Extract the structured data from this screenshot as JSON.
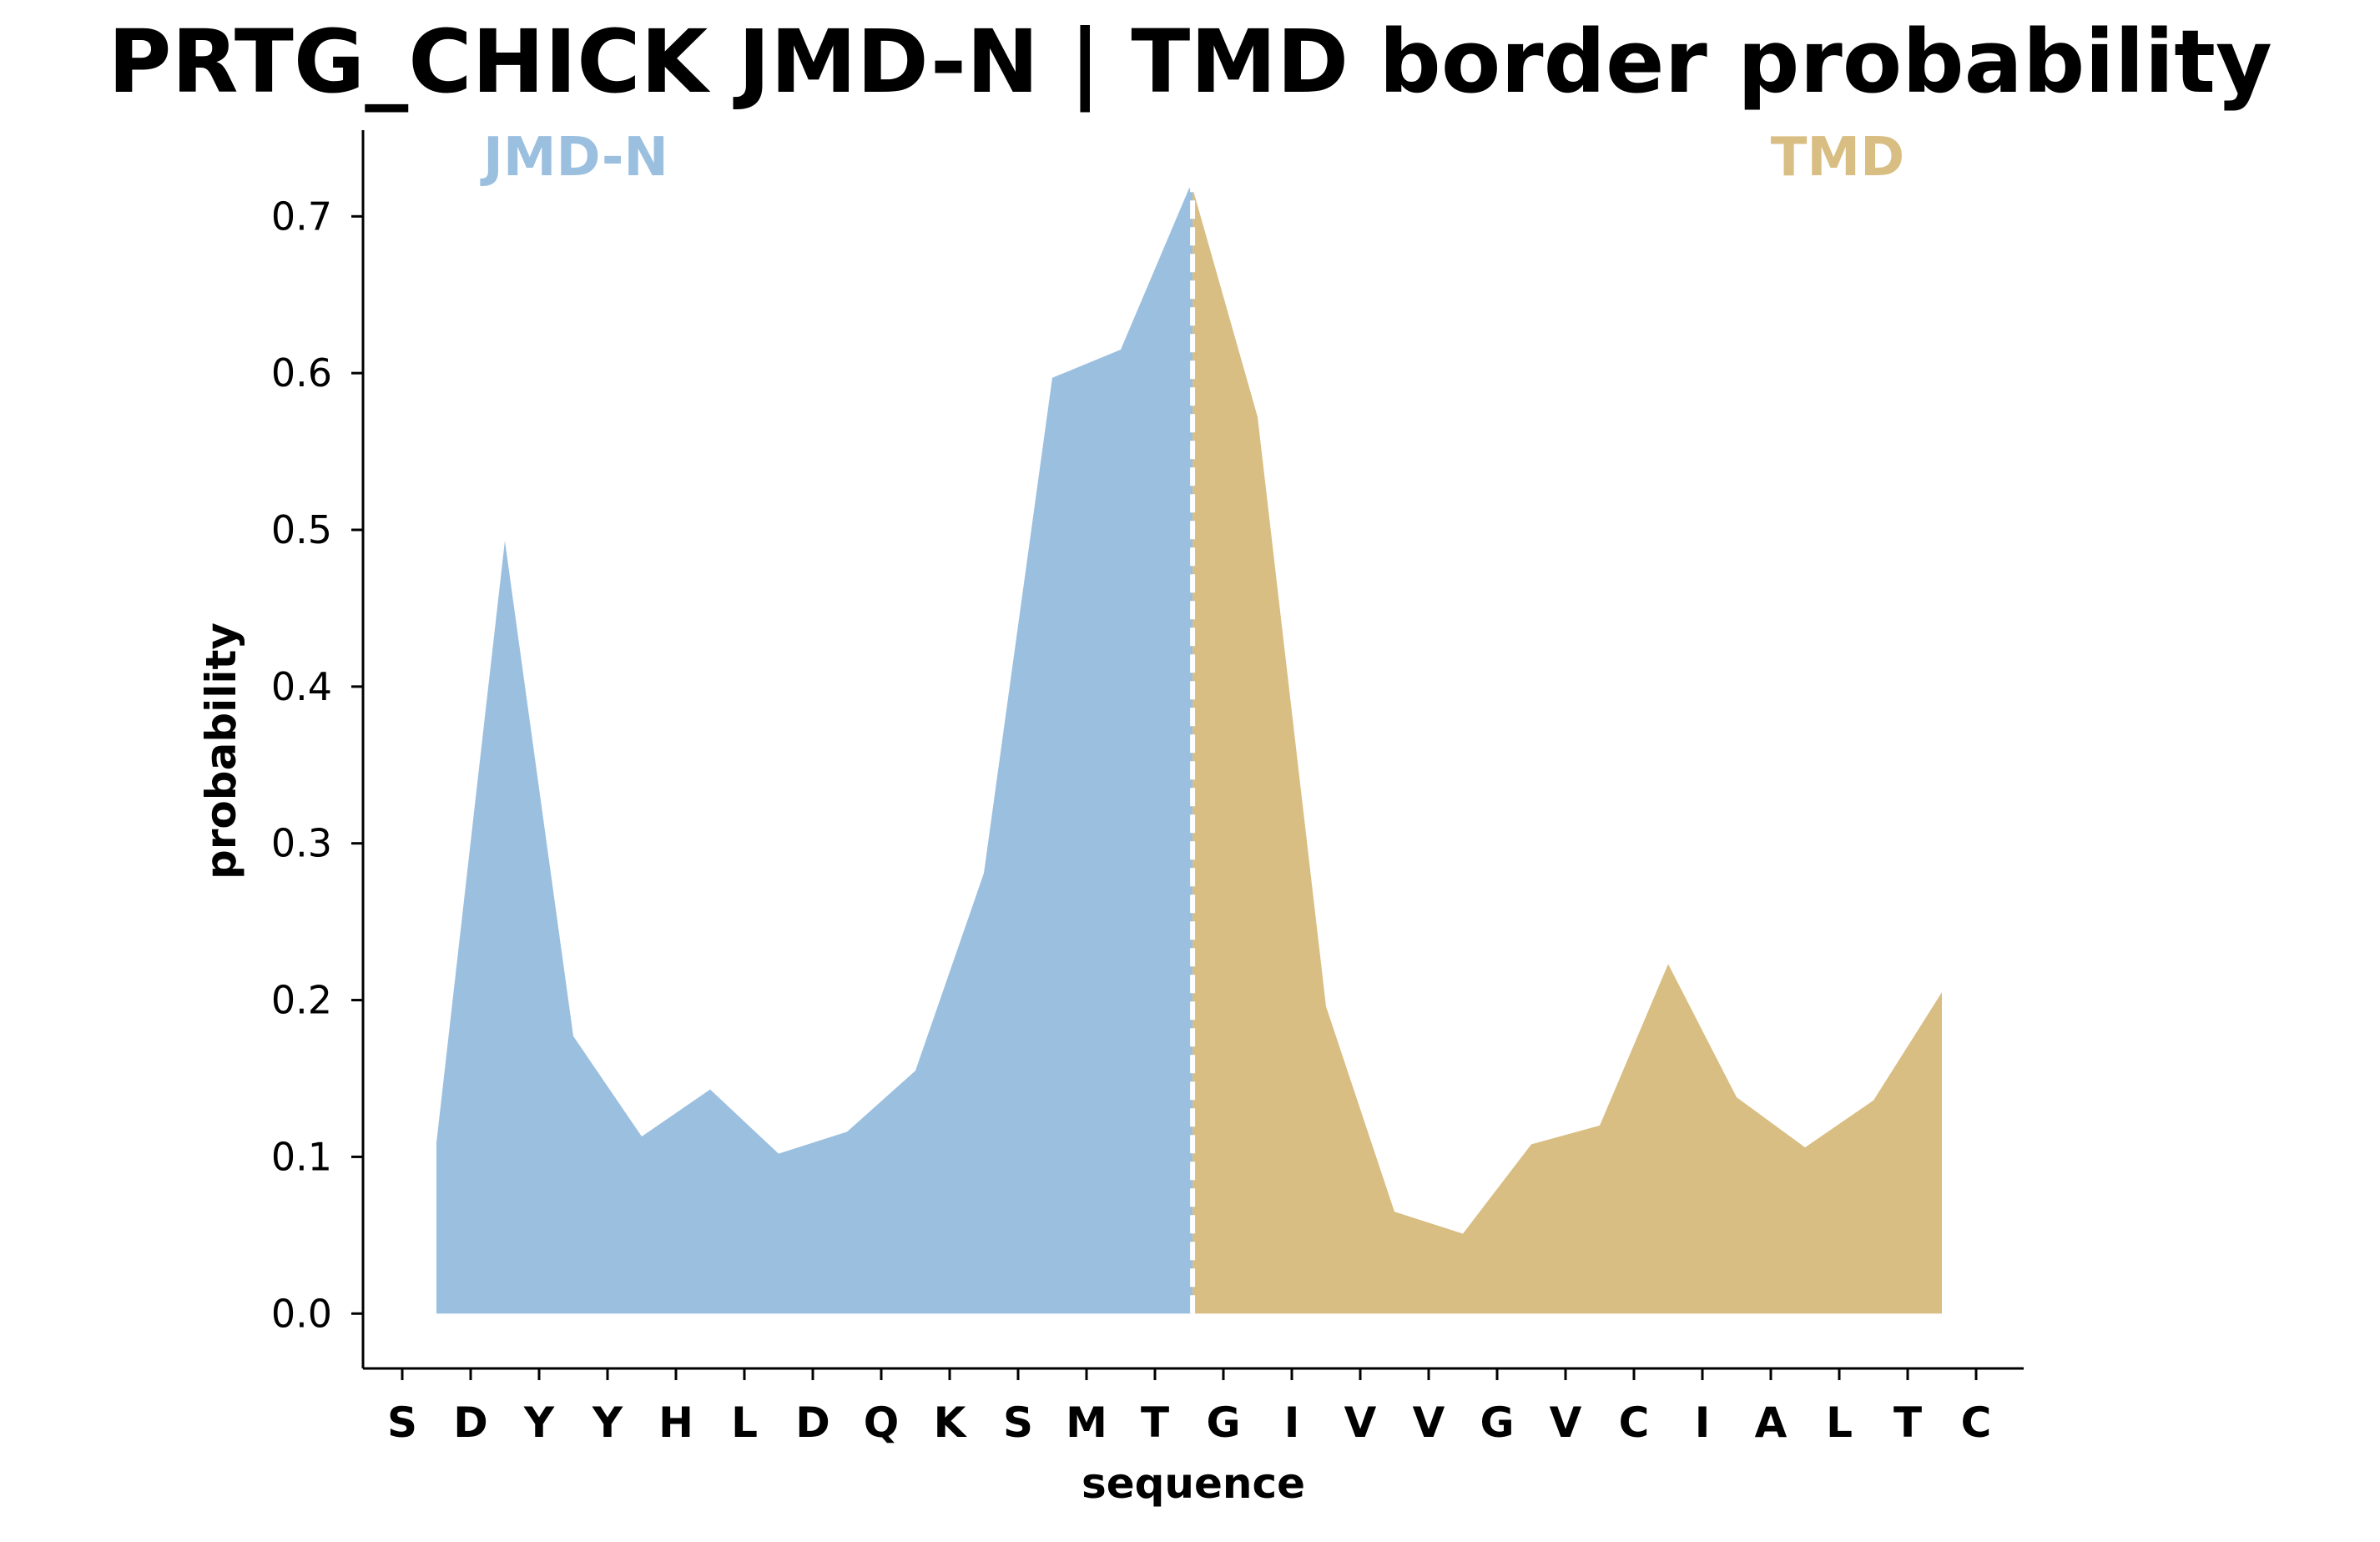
{
  "chart_data": {
    "type": "area",
    "title": "PRTG_CHICK JMD-N | TMD border probability",
    "xlabel": "sequence",
    "ylabel": "probability",
    "ylim": [
      -0.035,
      0.755
    ],
    "yticks": [
      0.0,
      0.1,
      0.2,
      0.3,
      0.4,
      0.5,
      0.6,
      0.7
    ],
    "ytick_labels": [
      "0.0",
      "0.1",
      "0.2",
      "0.3",
      "0.4",
      "0.5",
      "0.6",
      "0.7"
    ],
    "sequence": [
      "S",
      "D",
      "Y",
      "Y",
      "H",
      "L",
      "D",
      "Q",
      "K",
      "S",
      "M",
      "T",
      "G",
      "I",
      "V",
      "V",
      "G",
      "V",
      "C",
      "I",
      "A",
      "L",
      "T",
      "C"
    ],
    "x": [
      0.5,
      1.5,
      2.5,
      3.5,
      4.5,
      5.5,
      6.5,
      7.5,
      8.5,
      9.5,
      10.5,
      11.5,
      11.55,
      12.5,
      13.5,
      14.5,
      15.5,
      16.5,
      17.5,
      18.5,
      19.5,
      20.5,
      21.5,
      22.5
    ],
    "values": [
      0.109,
      0.493,
      0.177,
      0.113,
      0.143,
      0.102,
      0.116,
      0.155,
      0.281,
      0.597,
      0.615,
      0.718,
      0.718,
      0.572,
      0.196,
      0.065,
      0.051,
      0.108,
      0.12,
      0.223,
      0.138,
      0.106,
      0.136,
      0.205
    ],
    "regions": [
      {
        "name": "JMD-N",
        "x_start": 0.5,
        "x_end": 11.55,
        "color": "#9bbfdf"
      },
      {
        "name": "TMD",
        "x_start": 11.55,
        "x_end": 22.5,
        "color": "#d9be83"
      }
    ],
    "border_x": 11.55,
    "region_labels": [
      {
        "text": "JMD-N",
        "color": "#9bbfdf"
      },
      {
        "text": "TMD",
        "color": "#d9be83"
      }
    ],
    "grid": false,
    "legend": "none"
  }
}
